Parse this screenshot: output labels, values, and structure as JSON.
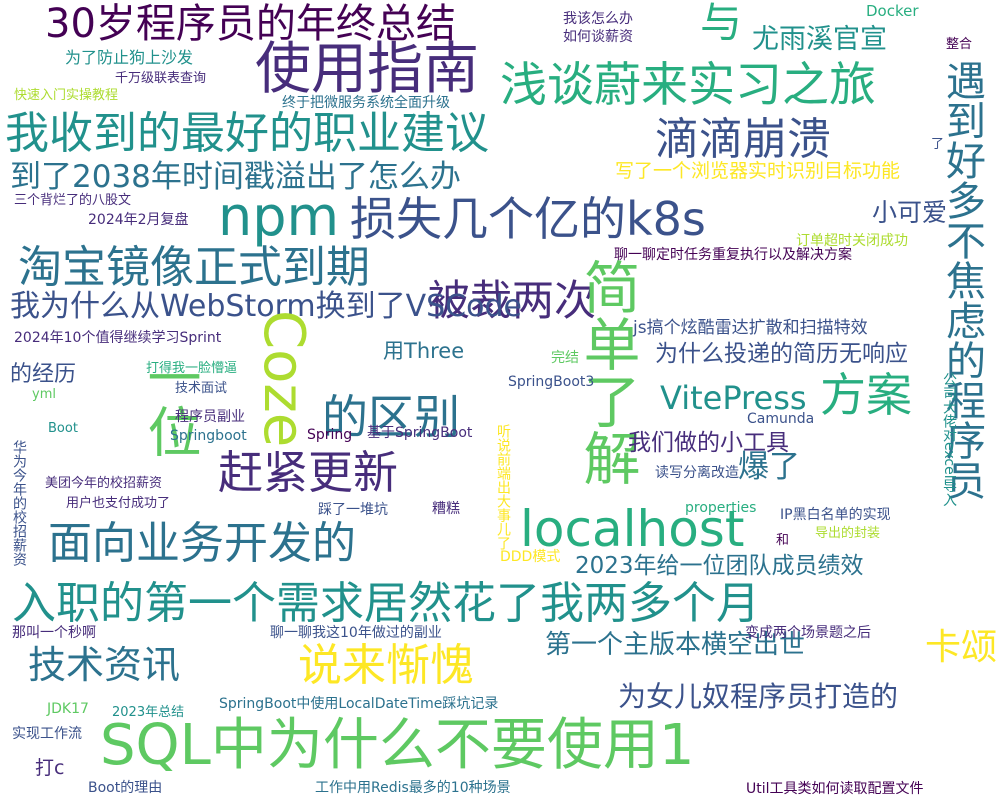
{
  "palette": {
    "c1": "#440154",
    "c2": "#472d7b",
    "c3": "#3b528b",
    "c4": "#2c728e",
    "c5": "#21918c",
    "c6": "#28ae80",
    "c7": "#5ec962",
    "c8": "#addc30",
    "c9": "#fde725"
  },
  "words": [
    {
      "text": "30岁程序员的年终总结",
      "color": "#440154"
    },
    {
      "text": "与",
      "color": "#28ae80"
    },
    {
      "text": "尤雨溪官宣",
      "color": "#21918c"
    },
    {
      "text": "使用指南",
      "color": "#472d7b"
    },
    {
      "text": "浅谈蔚来实习之旅",
      "color": "#28ae80"
    },
    {
      "text": "我收到的最好的职业建议",
      "color": "#21918c"
    },
    {
      "text": "滴滴崩溃",
      "color": "#3b528b"
    },
    {
      "text": "到了2038年时间戳溢出了怎么办",
      "color": "#2c728e"
    },
    {
      "text": "npm",
      "color": "#21918c"
    },
    {
      "text": "损失几个亿的k8s",
      "color": "#3b528b"
    },
    {
      "text": "淘宝镜像正式到期",
      "color": "#2c728e"
    },
    {
      "text": "被裁两次",
      "color": "#472d7b"
    },
    {
      "text": "我为什么从WebStorm换到了VSCode",
      "color": "#3b528b"
    },
    {
      "text": "Coze",
      "color": "#addc30"
    },
    {
      "text": "一位",
      "color": "#5ec962"
    },
    {
      "text": "简单了解",
      "color": "#5ec962"
    },
    {
      "text": "遇到好多不焦虑的程序员",
      "color": "#2c728e"
    },
    {
      "text": "的区别",
      "color": "#2c728e"
    },
    {
      "text": "方案",
      "color": "#28ae80"
    },
    {
      "text": "VitePress",
      "color": "#21918c"
    },
    {
      "text": "赶紧更新",
      "color": "#472d7b"
    },
    {
      "text": "localhost",
      "color": "#28ae80"
    },
    {
      "text": "面向业务开发的",
      "color": "#2c728e"
    },
    {
      "text": "入职的第一个需求居然花了我两多个月",
      "color": "#21918c"
    },
    {
      "text": "说来惭愧",
      "color": "#fde725"
    },
    {
      "text": "技术资讯",
      "color": "#2c728e"
    },
    {
      "text": "卡颂",
      "color": "#fde725"
    },
    {
      "text": "SQL中为什么不要使用1",
      "color": "#5ec962"
    },
    {
      "text": "爆了",
      "color": "#2c728e"
    },
    {
      "text": "2023年给一位团队成员绩效",
      "color": "#2c728e"
    },
    {
      "text": "第一个主版本横空出世",
      "color": "#2c728e"
    },
    {
      "text": "为女儿奴程序员打造的",
      "color": "#3b528b"
    },
    {
      "text": "我们做的小工具",
      "color": "#472d7b"
    },
    {
      "text": "为什么投递的简历无响应",
      "color": "#3b528b"
    },
    {
      "text": "小可爱",
      "color": "#3b528b"
    },
    {
      "text": "写了一个浏览器实时识别目标功能",
      "color": "#fde725"
    },
    {
      "text": "终于把微服务系统全面升级",
      "color": "#2c728e"
    },
    {
      "text": "为了防止狗上沙发",
      "color": "#21918c"
    },
    {
      "text": "千万级联表查询",
      "color": "#472d7b"
    },
    {
      "text": "快速入门实操教程",
      "color": "#addc30"
    },
    {
      "text": "我该怎么办",
      "color": "#472d7b"
    },
    {
      "text": "如何谈薪资",
      "color": "#472d7b"
    },
    {
      "text": "Docker",
      "color": "#28ae80"
    },
    {
      "text": "整合",
      "color": "#440154"
    },
    {
      "text": "了",
      "color": "#3b528b"
    },
    {
      "text": "三个背烂了的八股文",
      "color": "#472d7b"
    },
    {
      "text": "2024年2月复盘",
      "color": "#472d7b"
    },
    {
      "text": "聊一聊定时任务重复执行以及解决方案",
      "color": "#440154"
    },
    {
      "text": "订单超时关闭成功",
      "color": "#addc30"
    },
    {
      "text": "js搞个炫酷雷达扩散和扫描特效",
      "color": "#3b528b"
    },
    {
      "text": "公司大佬对excel导入",
      "color": "#21918c"
    },
    {
      "text": "2024年10个值得继续学习Sprint",
      "color": "#472d7b"
    },
    {
      "text": "用Three",
      "color": "#2c728e"
    },
    {
      "text": "的经历",
      "color": "#3b528b"
    },
    {
      "text": "打得我一脸懵逼",
      "color": "#28ae80"
    },
    {
      "text": "技术面试",
      "color": "#3b528b"
    },
    {
      "text": "完结",
      "color": "#5ec962"
    },
    {
      "text": "SpringBoot3",
      "color": "#3b528b"
    },
    {
      "text": "yml",
      "color": "#5ec962"
    },
    {
      "text": "程序员副业",
      "color": "#472d7b"
    },
    {
      "text": "Springboot",
      "color": "#2c728e"
    },
    {
      "text": "Boot",
      "color": "#21918c"
    },
    {
      "text": "Spring",
      "color": "#440154"
    },
    {
      "text": "基于SpringBoot",
      "color": "#472d7b"
    },
    {
      "text": "听说前端出大事儿了",
      "color": "#fde725"
    },
    {
      "text": "Camunda",
      "color": "#3b528b"
    },
    {
      "text": "读写分离改造",
      "color": "#3b528b"
    },
    {
      "text": "华为今年的校招薪资",
      "color": "#3b528b"
    },
    {
      "text": "美团今年的校招薪资",
      "color": "#472d7b"
    },
    {
      "text": "用户也支付成功了",
      "color": "#472d7b"
    },
    {
      "text": "踩了一堆坑",
      "color": "#3b528b"
    },
    {
      "text": "糟糕",
      "color": "#472d7b"
    },
    {
      "text": "properties",
      "color": "#28ae80"
    },
    {
      "text": "IP黑白名单的实现",
      "color": "#3b528b"
    },
    {
      "text": "导出的封装",
      "color": "#addc30"
    },
    {
      "text": "和",
      "color": "#440154"
    },
    {
      "text": "DDD模式",
      "color": "#fde725"
    },
    {
      "text": "那叫一个秒啊",
      "color": "#472d7b"
    },
    {
      "text": "聊一聊我这10年做过的副业",
      "color": "#3b528b"
    },
    {
      "text": "变成两个场景题之后",
      "color": "#472d7b"
    },
    {
      "text": "JDK17",
      "color": "#5ec962"
    },
    {
      "text": "2023年总结",
      "color": "#21918c"
    },
    {
      "text": "SpringBoot中使用LocalDateTime踩坑记录",
      "color": "#2c728e"
    },
    {
      "text": "实现工作流",
      "color": "#3b528b"
    },
    {
      "text": "打c",
      "color": "#472d7b"
    },
    {
      "text": "Boot的理由",
      "color": "#3b528b"
    },
    {
      "text": "工作中用Redis最多的10种场景",
      "color": "#2c728e"
    },
    {
      "text": "Util工具类如何读取配置文件",
      "color": "#440154"
    }
  ]
}
